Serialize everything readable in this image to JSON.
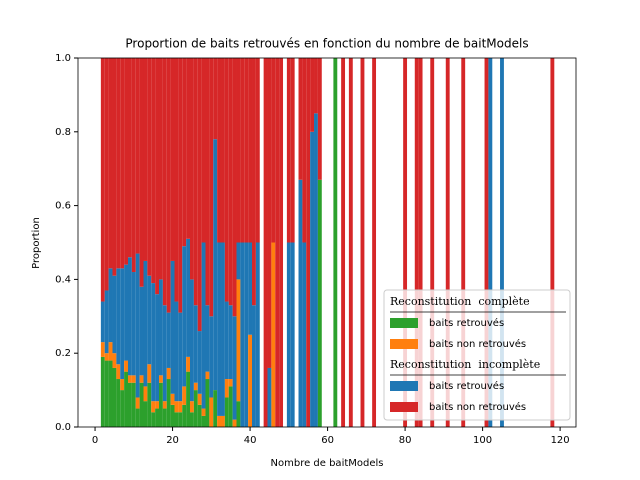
{
  "chart_data": {
    "type": "stacked_bar",
    "title": "Proportion de baits retrouvés en fonction du nombre de baitModels",
    "xlabel": "Nombre de baitModels",
    "ylabel": "Proportion",
    "x": [
      2,
      3,
      4,
      5,
      6,
      7,
      8,
      9,
      10,
      11,
      12,
      13,
      14,
      15,
      16,
      17,
      18,
      19,
      20,
      21,
      22,
      23,
      24,
      25,
      26,
      27,
      28,
      29,
      30,
      31,
      32,
      33,
      34,
      35,
      36,
      37,
      38,
      39,
      40,
      41,
      42,
      44,
      45,
      46,
      47,
      48,
      50,
      51,
      53,
      54,
      55,
      56,
      57,
      58,
      62,
      64,
      66,
      69,
      72,
      80,
      83,
      84,
      87,
      91,
      95,
      101,
      102,
      105,
      118
    ],
    "xlim": [
      -4.4,
      124.1
    ],
    "xticks": [
      0,
      20,
      40,
      60,
      80,
      100,
      120
    ],
    "ylim": [
      0,
      1
    ],
    "yticks": [
      {
        "value": 0,
        "label": "0.0"
      },
      {
        "value": 0.2,
        "label": "0.2"
      },
      {
        "value": 0.4,
        "label": "0.4"
      },
      {
        "value": 0.6,
        "label": "0.6"
      },
      {
        "value": 0.8,
        "label": "0.8"
      },
      {
        "value": 1,
        "label": "1.0"
      }
    ],
    "legend": {
      "loc": "lower right",
      "titles": [
        "Reconstitution  complète",
        "Reconstitution  incomplète"
      ]
    },
    "series": [
      {
        "name": "baits retrouvés",
        "color": "#2ca02c",
        "values": [
          0.19,
          0.18,
          0.18,
          0.16,
          0.13,
          0.1,
          0.15,
          0.12,
          0.12,
          0.05,
          0.12,
          0.07,
          0.12,
          0.04,
          0.05,
          0.12,
          0.05,
          0.13,
          0.06,
          0.04,
          0.04,
          0.06,
          0.15,
          0.04,
          0.1,
          0.06,
          0.03,
          0.13,
          0,
          0.1,
          0,
          0,
          0.08,
          0.11,
          0,
          0.07,
          0,
          0,
          0,
          0,
          0,
          0,
          0,
          0,
          0,
          0,
          0,
          0,
          0,
          0,
          0,
          0,
          0,
          0.67,
          1,
          0,
          0,
          0,
          0,
          0,
          0,
          0,
          0,
          0,
          0,
          0,
          0,
          0,
          0
        ]
      },
      {
        "name": "baits non retrouvés",
        "color": "#ff7f0e",
        "values": [
          0.04,
          0.02,
          0.05,
          0.04,
          0.04,
          0.03,
          0.03,
          0.02,
          0.02,
          0.03,
          0.02,
          0.04,
          0.05,
          0.03,
          0.02,
          0.02,
          0.02,
          0.03,
          0.03,
          0.03,
          0.03,
          0.05,
          0.04,
          0.03,
          0.02,
          0.03,
          0.02,
          0.02,
          0.08,
          0,
          0.03,
          0.03,
          0.05,
          0.02,
          0.02,
          0.33,
          0,
          0,
          0.25,
          0,
          0,
          0,
          0,
          0.5,
          0,
          0,
          0,
          0,
          0,
          0,
          0,
          0,
          0,
          0,
          0,
          0,
          0,
          0,
          0,
          0,
          0,
          0,
          0,
          0,
          0,
          0,
          0,
          0,
          0
        ]
      },
      {
        "name": "baits retrouvés",
        "color": "#1f77b4",
        "values": [
          0.11,
          0.17,
          0.2,
          0.21,
          0.26,
          0.3,
          0.26,
          0.32,
          0.28,
          0.39,
          0.24,
          0.34,
          0.24,
          0.32,
          0.29,
          0.26,
          0.26,
          0.15,
          0.36,
          0.27,
          0.24,
          0.38,
          0.32,
          0.33,
          0.21,
          0.17,
          0.45,
          0.18,
          0.22,
          0.68,
          0.47,
          0.47,
          0.21,
          0.2,
          0.28,
          0.1,
          0.5,
          0.5,
          0.25,
          0.33,
          0.5,
          0,
          0.16,
          0,
          0,
          0,
          0.5,
          0.5,
          0.67,
          0.5,
          0,
          0.8,
          0.85,
          0,
          0,
          0,
          0,
          0,
          0,
          0,
          0,
          0,
          0,
          0,
          0,
          0,
          1,
          1,
          0
        ]
      },
      {
        "name": "baits non retrouvés",
        "color": "#d62728",
        "values": [
          0.66,
          0.63,
          0.57,
          0.59,
          0.57,
          0.57,
          0.56,
          0.54,
          0.58,
          0.53,
          0.62,
          0.55,
          0.59,
          0.61,
          0.64,
          0.6,
          0.67,
          0.69,
          0.55,
          0.66,
          0.69,
          0.51,
          0.49,
          0.6,
          0.67,
          0.74,
          0.5,
          0.67,
          0.7,
          0.22,
          0.5,
          0.5,
          0.66,
          0.67,
          0.7,
          0.5,
          0.5,
          0.5,
          0.5,
          0.67,
          0.5,
          1,
          0.84,
          0.5,
          1,
          1,
          0.5,
          0.5,
          0.33,
          0.5,
          1,
          0.2,
          0.15,
          0.33,
          0,
          1,
          1,
          1,
          1,
          1,
          1,
          1,
          1,
          1,
          1,
          1,
          0,
          0,
          1
        ]
      }
    ]
  }
}
